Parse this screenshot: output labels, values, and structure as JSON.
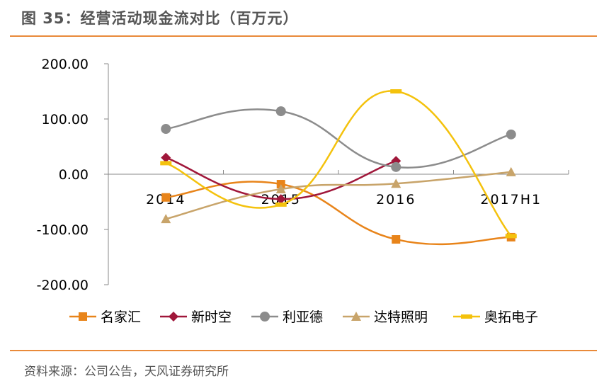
{
  "header": {
    "title": "图 35：经营活动现金流对比（百万元）"
  },
  "footer": {
    "source": "资料来源：公司公告，天风证券研究所"
  },
  "chart_data": {
    "type": "line",
    "smooth": true,
    "title": "图 35：经营活动现金流对比（百万元）",
    "xlabel": "",
    "ylabel": "",
    "categories": [
      "2014",
      "2015",
      "2016",
      "2017H1"
    ],
    "ylim": [
      -200,
      200
    ],
    "yticks": [
      200,
      100,
      0,
      -100,
      -200
    ],
    "ytick_labels": [
      "200.00",
      "100.00",
      "0.00",
      "-100.00",
      "-200.00"
    ],
    "grid": false,
    "legend_position": "bottom",
    "series": [
      {
        "name": "名家汇",
        "color": "#e8841a",
        "marker": "square",
        "values": [
          -42,
          -18,
          -118,
          -114
        ]
      },
      {
        "name": "新时空",
        "color": "#a0173a",
        "marker": "diamond",
        "values": [
          30,
          -45,
          24,
          null
        ]
      },
      {
        "name": "利亚德",
        "color": "#8c8c8c",
        "marker": "circle",
        "values": [
          82,
          114,
          13,
          72
        ]
      },
      {
        "name": "达特照明",
        "color": "#c8a46a",
        "marker": "triangle",
        "values": [
          -81,
          -27,
          -17,
          4
        ]
      },
      {
        "name": "奥拓电子",
        "color": "#f4c20d",
        "marker": "dash",
        "values": [
          20,
          -55,
          150,
          -112
        ]
      }
    ]
  }
}
